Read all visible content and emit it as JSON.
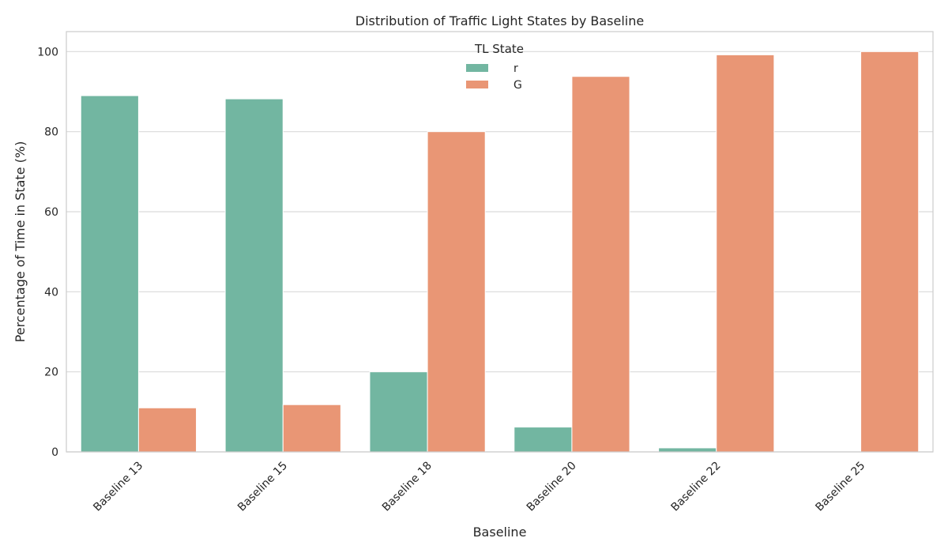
{
  "chart_data": {
    "type": "bar",
    "title": "Distribution of Traffic Light States by Baseline",
    "xlabel": "Baseline",
    "ylabel": "Percentage of Time in State (%)",
    "categories": [
      "Baseline 13",
      "Baseline 15",
      "Baseline 18",
      "Baseline 20",
      "Baseline 22",
      "Baseline 25"
    ],
    "series": [
      {
        "name": "r",
        "color": "#72b6a1",
        "values": [
          89,
          88.2,
          20,
          6.2,
          1.0,
          0
        ]
      },
      {
        "name": "G",
        "color": "#e99675",
        "values": [
          11,
          11.8,
          80,
          93.8,
          99.2,
          100
        ]
      }
    ],
    "ylim": [
      0,
      105
    ],
    "yticks": [
      0,
      20,
      40,
      60,
      80,
      100
    ],
    "grid": true,
    "legend": {
      "title": "TL State",
      "placement": "top-center"
    }
  }
}
